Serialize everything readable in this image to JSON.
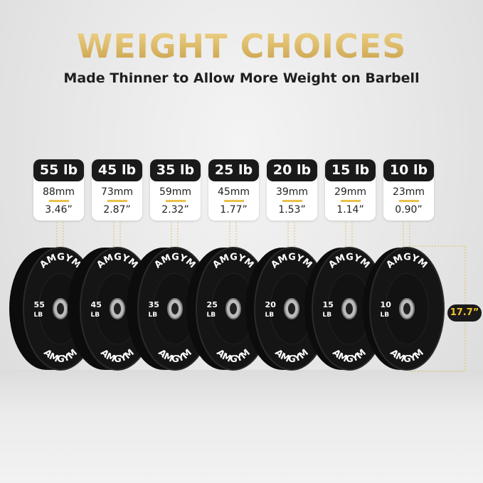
{
  "title": "WEIGHT CHOICES",
  "subtitle": "Made Thinner to Allow More Weight on Barbell",
  "plates": [
    {
      "weight": "55 lb",
      "mm": "88mm",
      "inches": "3.46”",
      "num": "55"
    },
    {
      "weight": "45 lb",
      "mm": "73mm",
      "inches": "2.87”",
      "num": "45"
    },
    {
      "weight": "35 lb",
      "mm": "59mm",
      "inches": "2.32”",
      "num": "35"
    },
    {
      "weight": "25 lb",
      "mm": "45mm",
      "inches": "1.77”",
      "num": "25"
    },
    {
      "weight": "20 lb",
      "mm": "39mm",
      "inches": "1.53”",
      "num": "20"
    },
    {
      "weight": "15 lb",
      "mm": "29mm",
      "inches": "1.14”",
      "num": "15"
    },
    {
      "weight": "10 lb",
      "mm": "23mm",
      "inches": "0.90”",
      "num": "10"
    }
  ],
  "brand": "AMGYM",
  "unit": "LB",
  "diameter": "17.7”",
  "colors": {
    "gold": "#d8b560",
    "dark": "#1a1a1a",
    "accent": "#f0c42c"
  }
}
